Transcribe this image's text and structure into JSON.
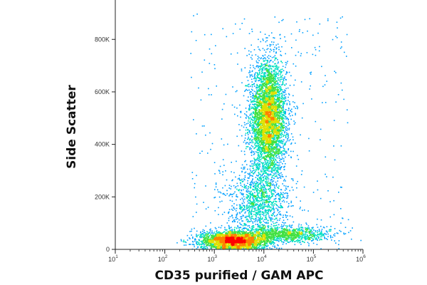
{
  "chart_data": {
    "type": "scatter",
    "style": "flow cytometry density dot plot (pseudocolor)",
    "xlabel": "CD35 purified / GAM APC",
    "ylabel": "Side Scatter",
    "x_scale": "log",
    "xlim": [
      10,
      1000000
    ],
    "x_ticks": [
      {
        "base": "10",
        "exp": "1",
        "value": 10
      },
      {
        "base": "10",
        "exp": "2",
        "value": 100
      },
      {
        "base": "10",
        "exp": "3",
        "value": 1000
      },
      {
        "base": "10",
        "exp": "4",
        "value": 10000
      },
      {
        "base": "10",
        "exp": "5",
        "value": 100000
      },
      {
        "base": "10",
        "exp": "6",
        "value": 1000000
      }
    ],
    "y_scale": "linear",
    "ylim": [
      0,
      950000
    ],
    "y_ticks": [
      {
        "label": "0",
        "value": 0
      },
      {
        "label": "200K",
        "value": 200000
      },
      {
        "label": "400K",
        "value": 400000
      },
      {
        "label": "600K",
        "value": 600000
      },
      {
        "label": "800K",
        "value": 800000
      }
    ],
    "grid": false,
    "legend": "none",
    "density_colors": [
      "#1a1aff",
      "#00a0ff",
      "#00e0c0",
      "#40e040",
      "#e0e000",
      "#ff8000",
      "#ff0000"
    ],
    "populations": [
      {
        "center_x": 12000,
        "center_y": 500000,
        "spread_log_x": 0.18,
        "spread_y": 110000,
        "count": 4200
      },
      {
        "center_x": 2500,
        "center_y": 35000,
        "spread_log_x": 0.35,
        "spread_y": 18000,
        "count": 2600
      },
      {
        "center_x": 30000,
        "center_y": 60000,
        "spread_log_x": 0.45,
        "spread_y": 15000,
        "count": 900
      },
      {
        "center_x": 8000,
        "center_y": 180000,
        "spread_log_x": 0.3,
        "spread_y": 70000,
        "count": 1100
      }
    ]
  }
}
